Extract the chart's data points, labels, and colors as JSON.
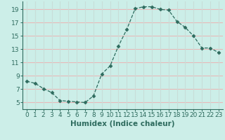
{
  "x": [
    0,
    1,
    2,
    3,
    4,
    5,
    6,
    7,
    8,
    9,
    10,
    11,
    12,
    13,
    14,
    15,
    16,
    17,
    18,
    19,
    20,
    21,
    22,
    23
  ],
  "y": [
    8.2,
    7.9,
    7.1,
    6.5,
    5.3,
    5.2,
    5.1,
    5.0,
    6.0,
    9.3,
    10.5,
    13.5,
    16.0,
    19.1,
    19.4,
    19.4,
    19.0,
    18.9,
    17.2,
    16.3,
    15.0,
    13.2,
    13.2,
    12.5
  ],
  "line_color": "#2e6b5e",
  "marker": "D",
  "marker_size": 2.5,
  "bg_color": "#cceee8",
  "grid_color_h": "#e8b8b8",
  "grid_color_v": "#c8ddd8",
  "xlabel": "Humidex (Indice chaleur)",
  "xlim": [
    -0.5,
    23.5
  ],
  "ylim": [
    4.0,
    20.2
  ],
  "yticks": [
    5,
    7,
    9,
    11,
    13,
    15,
    17,
    19
  ],
  "xticks": [
    0,
    1,
    2,
    3,
    4,
    5,
    6,
    7,
    8,
    9,
    10,
    11,
    12,
    13,
    14,
    15,
    16,
    17,
    18,
    19,
    20,
    21,
    22,
    23
  ],
  "xtick_labels": [
    "0",
    "1",
    "2",
    "3",
    "4",
    "5",
    "6",
    "7",
    "8",
    "9",
    "10",
    "11",
    "12",
    "13",
    "14",
    "15",
    "16",
    "17",
    "18",
    "19",
    "20",
    "21",
    "22",
    "23"
  ],
  "font_size": 6.5,
  "label_font_size": 7.5
}
